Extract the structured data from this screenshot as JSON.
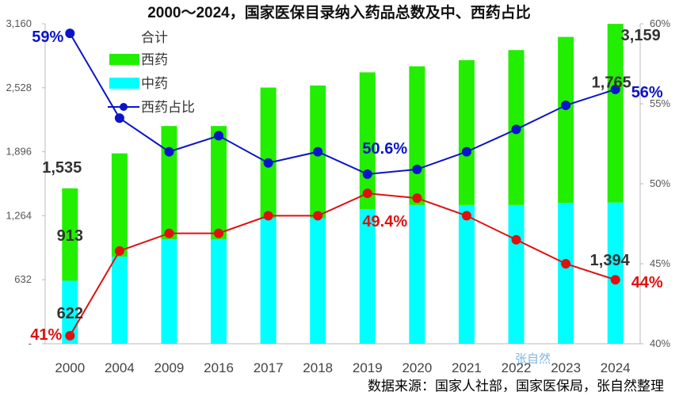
{
  "chart_data": {
    "type": "bar",
    "title": "2000～2024，国家医保目录纳入药品总数及中、西药占比",
    "categories": [
      "2000",
      "2004",
      "2009",
      "2016",
      "2017",
      "2018",
      "2019",
      "2020",
      "2021",
      "2022",
      "2023",
      "2024"
    ],
    "left_axis": {
      "ylim": [
        0,
        3160
      ],
      "ticks": [
        "-",
        "632",
        "1,264",
        "1,896",
        "2,528",
        "3,160"
      ],
      "tick_values": [
        0,
        632,
        1264,
        1896,
        2528,
        3160
      ]
    },
    "right_axis": {
      "ylim": [
        40,
        60
      ],
      "ticks": [
        "40%",
        "45%",
        "50%",
        "55%",
        "60%"
      ],
      "tick_values": [
        40,
        45,
        50,
        55,
        60
      ]
    },
    "legend": {
      "title": "合计",
      "position": "top-left"
    },
    "series": [
      {
        "name": "中药",
        "type": "stacked-bar",
        "axis": "left",
        "color": "#00ffff",
        "values": [
          622,
          860,
          1030,
          1030,
          1240,
          1240,
          1330,
          1370,
          1370,
          1370,
          1390,
          1394
        ]
      },
      {
        "name": "西药",
        "type": "stacked-bar",
        "axis": "left",
        "color": "#22ee00",
        "values": [
          913,
          1020,
          1120,
          1120,
          1290,
          1310,
          1350,
          1370,
          1430,
          1530,
          1640,
          1765
        ]
      },
      {
        "name": "西药占比",
        "type": "line",
        "axis": "right",
        "color": "#0a14c8",
        "values": [
          59.4,
          54.1,
          52.0,
          53.0,
          51.3,
          52.0,
          50.6,
          50.9,
          52.0,
          53.4,
          54.9,
          55.9
        ]
      },
      {
        "name": "",
        "type": "line",
        "axis": "right",
        "color": "#e01010",
        "values": [
          40.5,
          45.8,
          46.9,
          46.9,
          48.0,
          48.0,
          49.4,
          49.1,
          48.0,
          46.5,
          45.0,
          44.0
        ]
      }
    ],
    "annotations": [
      {
        "text": "59%",
        "color": "#0a14c8"
      },
      {
        "text": "41%",
        "color": "#e01010"
      },
      {
        "text": "1,535",
        "color": "#333333"
      },
      {
        "text": "913",
        "color": "#333333"
      },
      {
        "text": "622",
        "color": "#333333"
      },
      {
        "text": "50.6%",
        "color": "#0a14c8"
      },
      {
        "text": "49.4%",
        "color": "#e01010"
      },
      {
        "text": "3,159",
        "color": "#333333"
      },
      {
        "text": "1,765",
        "color": "#333333"
      },
      {
        "text": "56%",
        "color": "#0a14c8"
      },
      {
        "text": "1,394",
        "color": "#333333"
      },
      {
        "text": "44%",
        "color": "#e01010"
      }
    ],
    "source": "数据来源：国家人社部，国家医保局，张自然整理",
    "watermark": "张自然"
  }
}
